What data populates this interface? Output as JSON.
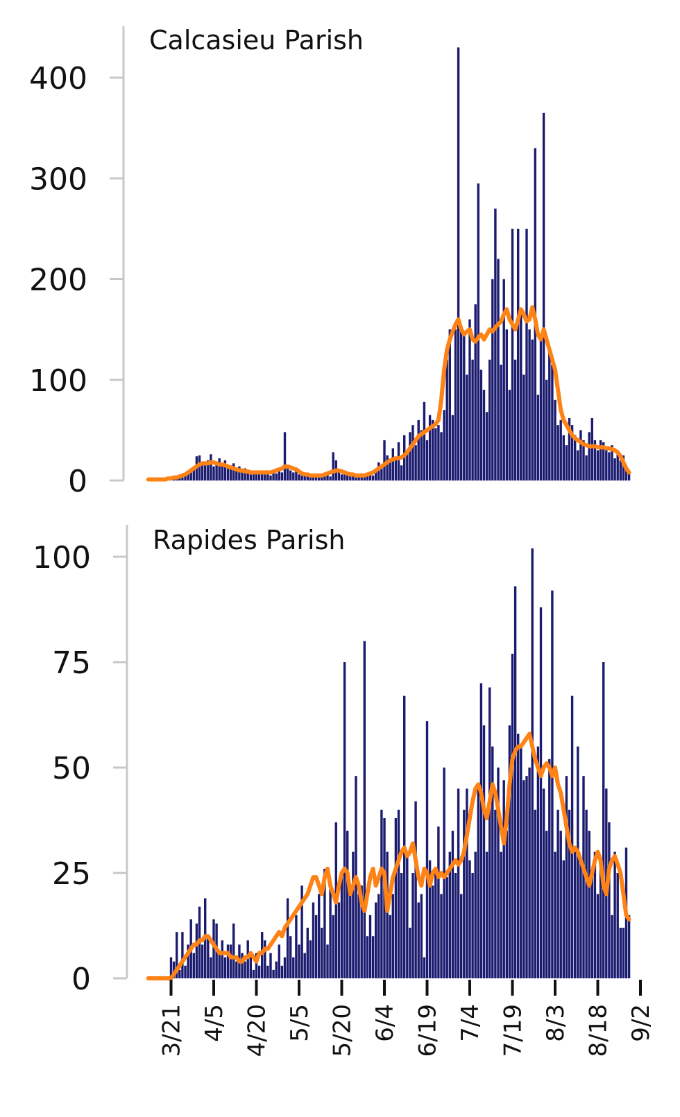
{
  "colors": {
    "bars": "#1b1b6f",
    "line": "#fd8316",
    "axis": "#c8c8c8",
    "text": "#111111"
  },
  "chart_data": [
    {
      "type": "bar",
      "title": "Calcasieu Parish",
      "ylim": [
        0,
        440
      ],
      "yticks": [
        "0",
        "100",
        "200",
        "300",
        "400"
      ],
      "ytick_values": [
        0,
        100,
        200,
        300,
        400
      ],
      "series": [
        {
          "type": "bar",
          "values": [
            0,
            0,
            0,
            0,
            0,
            1,
            1,
            2,
            3,
            2,
            4,
            5,
            3,
            6,
            8,
            10,
            12,
            24,
            25,
            18,
            15,
            20,
            26,
            14,
            18,
            22,
            16,
            20,
            12,
            15,
            17,
            10,
            14,
            8,
            12,
            10,
            6,
            9,
            8,
            7,
            10,
            6,
            8,
            5,
            9,
            7,
            12,
            8,
            48,
            15,
            10,
            8,
            12,
            6,
            5,
            7,
            4,
            6,
            5,
            4,
            3,
            5,
            4,
            6,
            4,
            28,
            20,
            8,
            6,
            10,
            5,
            4,
            6,
            3,
            5,
            7,
            4,
            6,
            8,
            5,
            10,
            18,
            14,
            40,
            25,
            20,
            32,
            22,
            38,
            15,
            45,
            30,
            48,
            55,
            35,
            60,
            50,
            78,
            40,
            65,
            60,
            52,
            55,
            48,
            70,
            120,
            150,
            65,
            150,
            430,
            150,
            145,
            105,
            160,
            120,
            175,
            295,
            110,
            90,
            68,
            120,
            200,
            270,
            220,
            115,
            200,
            150,
            90,
            250,
            120,
            250,
            170,
            105,
            250,
            150,
            140,
            330,
            85,
            140,
            365,
            100,
            130,
            115,
            80,
            55,
            60,
            45,
            35,
            62,
            55,
            45,
            30,
            50,
            40,
            25,
            48,
            62,
            40,
            30,
            40,
            38,
            30,
            28,
            35,
            22,
            30,
            20,
            25,
            15,
            8
          ]
        },
        {
          "type": "line",
          "values": [
            1,
            1,
            1,
            1,
            1,
            1,
            1,
            2,
            2,
            3,
            3,
            4,
            5,
            6,
            8,
            10,
            12,
            14,
            16,
            17,
            17,
            17,
            18,
            18,
            17,
            16,
            16,
            15,
            14,
            13,
            12,
            11,
            10,
            10,
            9,
            9,
            8,
            8,
            8,
            8,
            8,
            8,
            8,
            8,
            9,
            10,
            11,
            12,
            14,
            14,
            13,
            12,
            11,
            9,
            7,
            6,
            6,
            5,
            5,
            5,
            5,
            5,
            6,
            7,
            8,
            9,
            10,
            10,
            9,
            8,
            7,
            6,
            6,
            5,
            5,
            5,
            5,
            6,
            7,
            8,
            10,
            12,
            14,
            16,
            18,
            20,
            21,
            22,
            22,
            23,
            25,
            28,
            32,
            36,
            40,
            44,
            46,
            48,
            50,
            52,
            54,
            56,
            60,
            80,
            110,
            130,
            140,
            148,
            155,
            160,
            150,
            145,
            148,
            150,
            140,
            138,
            142,
            145,
            140,
            145,
            150,
            148,
            152,
            155,
            158,
            165,
            170,
            160,
            155,
            150,
            160,
            170,
            165,
            158,
            160,
            172,
            160,
            145,
            140,
            150,
            140,
            130,
            120,
            110,
            90,
            70,
            60,
            55,
            50,
            45,
            42,
            40,
            38,
            36,
            35,
            34,
            34,
            34,
            33,
            33,
            33,
            32,
            32,
            31,
            30,
            28,
            24,
            18,
            12,
            8
          ]
        }
      ]
    },
    {
      "type": "bar",
      "title": "Rapides Parish",
      "ylim": [
        0,
        107
      ],
      "yticks": [
        "0",
        "25",
        "50",
        "75",
        "100"
      ],
      "ytick_values": [
        0,
        25,
        50,
        75,
        100
      ],
      "xticks": [
        "3/21",
        "4/5",
        "4/20",
        "5/5",
        "5/20",
        "6/4",
        "6/19",
        "7/4",
        "7/19",
        "8/3",
        "8/18",
        "9/2"
      ],
      "series": [
        {
          "type": "bar",
          "values": [
            0,
            0,
            0,
            0,
            0,
            0,
            0,
            0,
            5,
            4,
            11,
            2,
            11,
            3,
            8,
            14,
            6,
            13,
            17,
            8,
            19,
            10,
            5,
            14,
            13,
            6,
            9,
            5,
            8,
            8,
            13,
            4,
            8,
            6,
            4,
            9,
            5,
            2,
            6,
            3,
            11,
            9,
            3,
            6,
            2,
            4,
            8,
            3,
            5,
            19,
            10,
            5,
            15,
            8,
            22,
            6,
            12,
            9,
            18,
            15,
            20,
            12,
            26,
            8,
            23,
            15,
            37,
            18,
            25,
            75,
            35,
            22,
            30,
            48,
            20,
            22,
            80,
            10,
            15,
            10,
            18,
            20,
            40,
            38,
            30,
            15,
            20,
            38,
            40,
            25,
            67,
            30,
            12,
            25,
            42,
            18,
            20,
            5,
            61,
            28,
            22,
            25,
            36,
            20,
            50,
            24,
            30,
            35,
            25,
            45,
            20,
            40,
            45,
            28,
            25,
            30,
            45,
            70,
            60,
            30,
            69,
            55,
            40,
            50,
            30,
            47,
            35,
            60,
            77,
            93,
            58,
            55,
            47,
            48,
            50,
            102,
            40,
            55,
            88,
            45,
            35,
            52,
            92,
            30,
            40,
            35,
            28,
            48,
            40,
            67,
            30,
            55,
            28,
            48,
            40,
            35,
            25,
            30,
            20,
            28,
            75,
            45,
            37,
            15,
            30,
            25,
            12,
            12,
            31,
            15
          ]
        },
        {
          "type": "line",
          "values": [
            0,
            0,
            0,
            0,
            0,
            0,
            0,
            0,
            0,
            1,
            2,
            3,
            4,
            5,
            6,
            7,
            8,
            8,
            9,
            9,
            10,
            10,
            9,
            8,
            7,
            6,
            6,
            6,
            6,
            5,
            5,
            5,
            4,
            4,
            5,
            5,
            6,
            5,
            4,
            6,
            6,
            7,
            7,
            8,
            9,
            10,
            11,
            10,
            12,
            13,
            14,
            15,
            16,
            17,
            18,
            19,
            20,
            22,
            24,
            24,
            22,
            20,
            24,
            26,
            22,
            20,
            18,
            22,
            25,
            26,
            25,
            20,
            22,
            24,
            22,
            18,
            16,
            20,
            24,
            26,
            22,
            24,
            26,
            25,
            16,
            20,
            24,
            26,
            28,
            30,
            31,
            29,
            30,
            32,
            28,
            24,
            22,
            26,
            25,
            22,
            25,
            26,
            24,
            25,
            24,
            25,
            26,
            27,
            28,
            27,
            28,
            30,
            34,
            38,
            42,
            45,
            46,
            44,
            40,
            38,
            42,
            46,
            44,
            40,
            36,
            32,
            38,
            46,
            52,
            54,
            55,
            55,
            56,
            57,
            58,
            55,
            52,
            50,
            48,
            50,
            51,
            50,
            48,
            50,
            46,
            44,
            40,
            36,
            32,
            30,
            31,
            30,
            28,
            26,
            24,
            22,
            25,
            28,
            30,
            28,
            22,
            20,
            26,
            28,
            29,
            27,
            25,
            20,
            15,
            14
          ]
        }
      ]
    }
  ]
}
